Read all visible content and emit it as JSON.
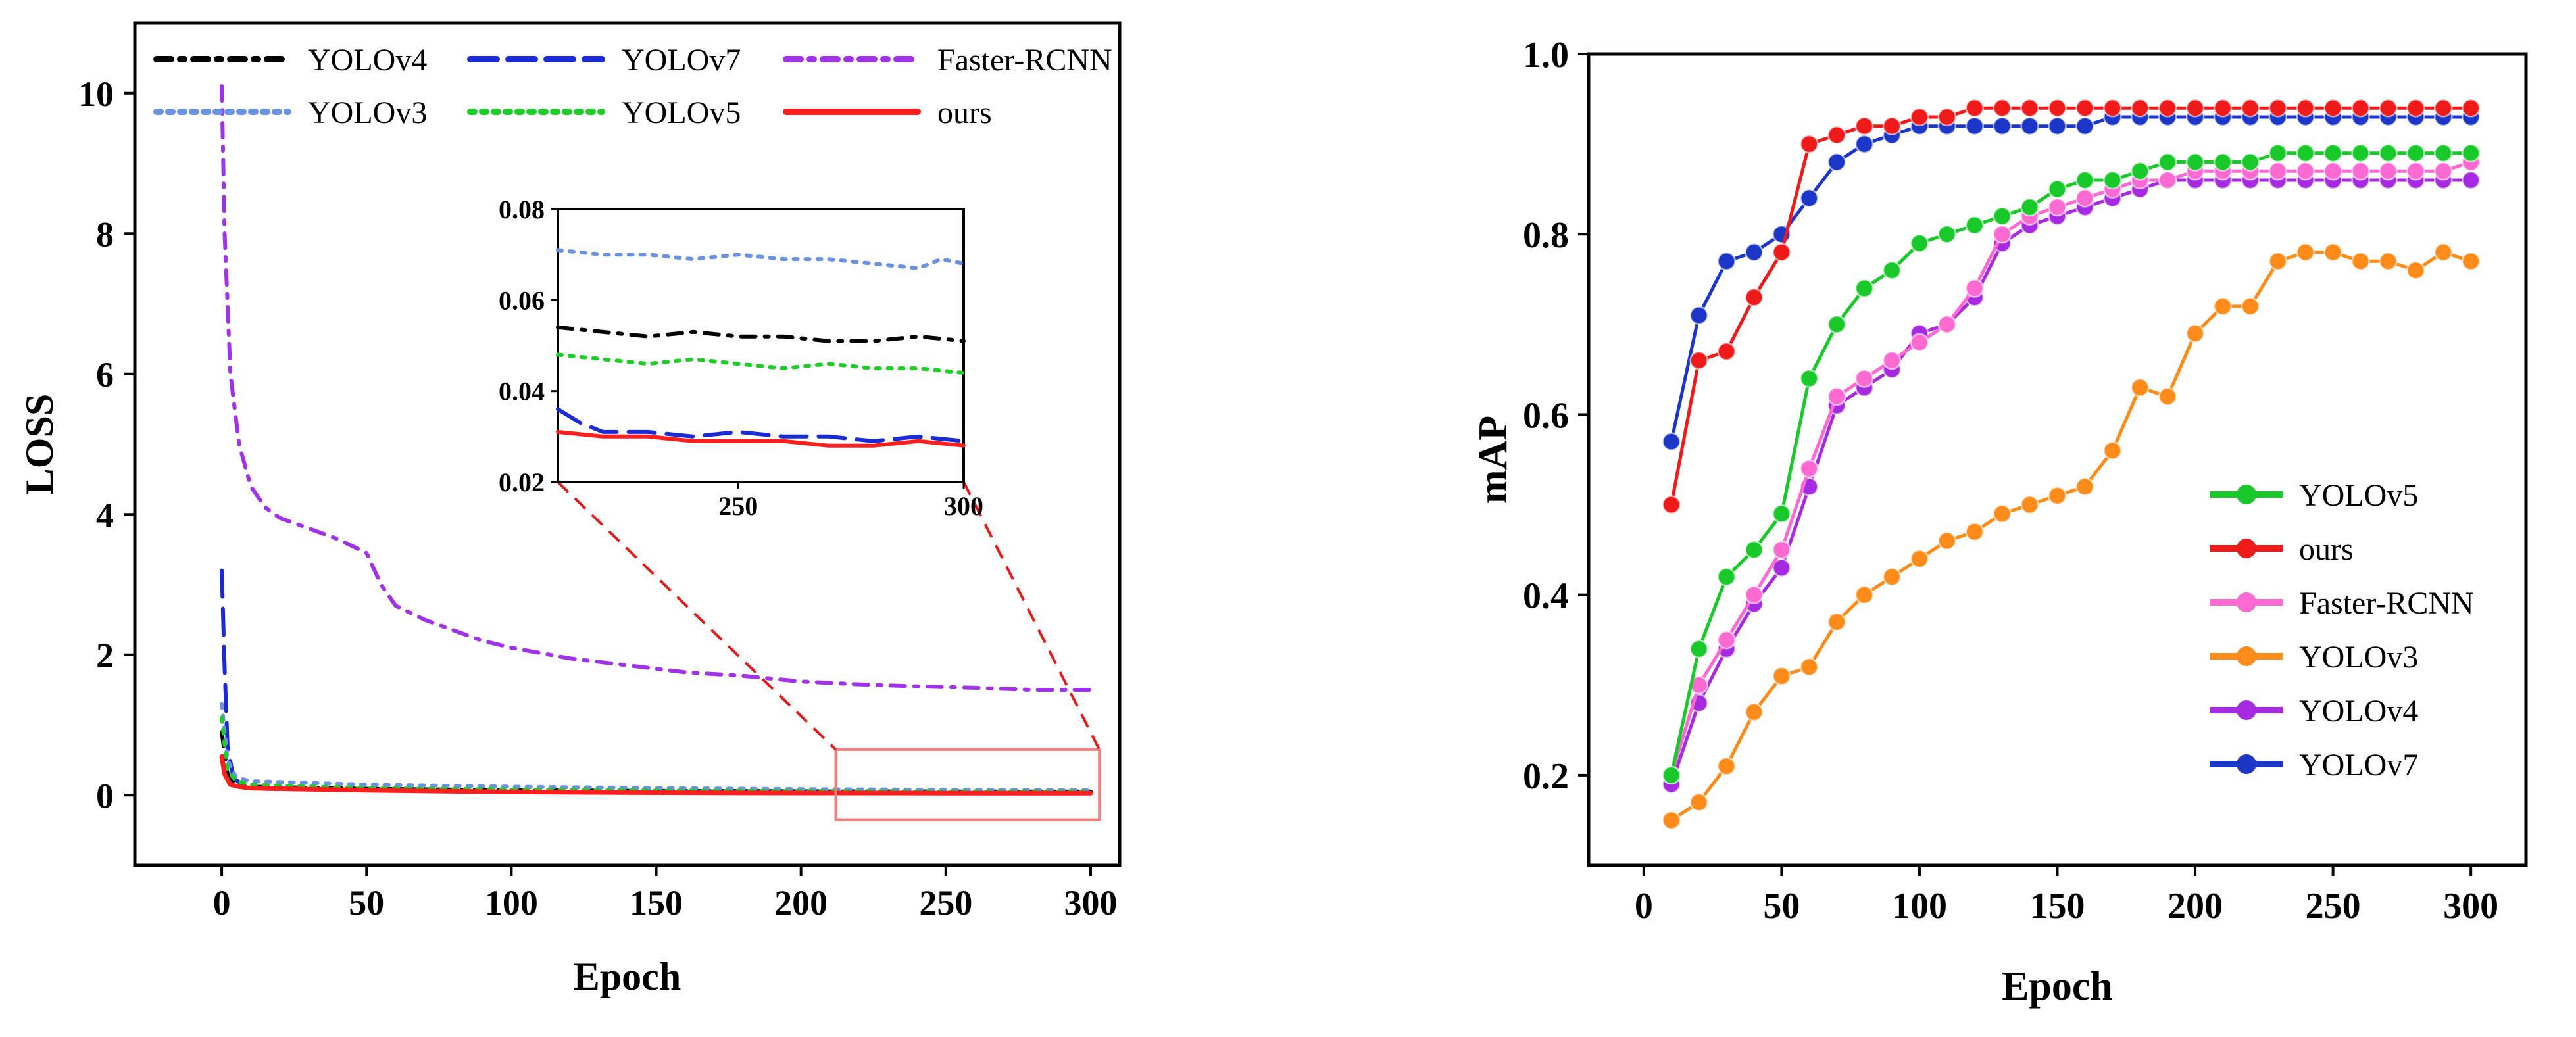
{
  "colors": {
    "YOLOv3": "#6a92e0",
    "YOLOv4": "#000000",
    "YOLOv5": "#1fcc2a",
    "YOLOv7": "#1a2bd6",
    "Faster-RCNN": "#a033e8",
    "ours": "#ff1f1f",
    "map_YOLOv5": "#19c92a",
    "map_ours": "#ef1a1a",
    "map_Faster-RCNN": "#ff69d2",
    "map_YOLOv3": "#ff8c1a",
    "map_YOLOv4": "#a52ae0",
    "map_YOLOv7": "#1c36c8",
    "zoom_box": "#f08080"
  },
  "chart_data": [
    {
      "type": "line",
      "xlabel": "Epoch",
      "ylabel": "LOSS",
      "xlim": [
        -30,
        310
      ],
      "ylim": [
        -1,
        11
      ],
      "xticks": [
        0,
        50,
        100,
        150,
        200,
        250,
        300
      ],
      "yticks": [
        0,
        2,
        4,
        6,
        8,
        10
      ],
      "legend": "top",
      "series": [
        {
          "name": "YOLOv4",
          "style": "dash-dot",
          "x": [
            0,
            2,
            5,
            10,
            50,
            100,
            150,
            200,
            250,
            300
          ],
          "y": [
            0.9,
            0.3,
            0.15,
            0.12,
            0.09,
            0.07,
            0.06,
            0.055,
            0.052,
            0.051
          ]
        },
        {
          "name": "YOLOv7",
          "style": "dashed",
          "x": [
            0,
            1,
            2,
            4,
            8,
            15,
            50,
            100,
            150,
            200,
            250,
            300
          ],
          "y": [
            3.2,
            1.8,
            0.7,
            0.25,
            0.12,
            0.09,
            0.07,
            0.05,
            0.04,
            0.035,
            0.031,
            0.03
          ]
        },
        {
          "name": "Faster-RCNN",
          "style": "dash-dot",
          "x": [
            0,
            1,
            3,
            6,
            10,
            15,
            20,
            30,
            40,
            50,
            55,
            60,
            70,
            80,
            90,
            100,
            120,
            140,
            160,
            180,
            200,
            220,
            240,
            260,
            280,
            300
          ],
          "y": [
            10.1,
            8.0,
            6.0,
            5.0,
            4.4,
            4.1,
            3.95,
            3.8,
            3.65,
            3.45,
            3.0,
            2.7,
            2.5,
            2.35,
            2.2,
            2.1,
            1.95,
            1.85,
            1.75,
            1.7,
            1.62,
            1.58,
            1.55,
            1.53,
            1.5,
            1.5
          ]
        },
        {
          "name": "YOLOv3",
          "style": "dotted",
          "x": [
            0,
            2,
            5,
            10,
            50,
            100,
            150,
            200,
            250,
            300
          ],
          "y": [
            1.3,
            0.5,
            0.25,
            0.2,
            0.15,
            0.12,
            0.1,
            0.085,
            0.075,
            0.07
          ]
        },
        {
          "name": "YOLOv5",
          "style": "dotted",
          "x": [
            0,
            2,
            5,
            10,
            50,
            100,
            150,
            200,
            250,
            300
          ],
          "y": [
            1.1,
            0.35,
            0.2,
            0.15,
            0.1,
            0.08,
            0.065,
            0.055,
            0.048,
            0.045
          ]
        },
        {
          "name": "ours",
          "style": "solid",
          "x": [
            0,
            1,
            3,
            6,
            10,
            50,
            100,
            150,
            200,
            250,
            300
          ],
          "y": [
            0.55,
            0.3,
            0.15,
            0.12,
            0.1,
            0.07,
            0.045,
            0.035,
            0.03,
            0.029,
            0.028
          ]
        }
      ],
      "inset": {
        "xlim": [
          210,
          300
        ],
        "ylim": [
          0.02,
          0.08
        ],
        "xticks": [
          250,
          300
        ],
        "yticks": [
          0.02,
          0.04,
          0.06,
          0.08
        ],
        "ytick_labels": [
          "0.02",
          "0.04",
          "0.06",
          "0.08"
        ],
        "series": [
          {
            "name": "YOLOv3",
            "style": "dotted",
            "x": [
              210,
              220,
              230,
              240,
              250,
              260,
              270,
              280,
              290,
              295,
              300
            ],
            "y": [
              0.071,
              0.07,
              0.07,
              0.069,
              0.07,
              0.069,
              0.069,
              0.068,
              0.067,
              0.069,
              0.068
            ]
          },
          {
            "name": "YOLOv4",
            "style": "dash-dot",
            "x": [
              210,
              220,
              230,
              240,
              250,
              260,
              270,
              280,
              290,
              300
            ],
            "y": [
              0.054,
              0.053,
              0.052,
              0.053,
              0.052,
              0.052,
              0.051,
              0.051,
              0.052,
              0.051
            ]
          },
          {
            "name": "YOLOv5",
            "style": "dotted",
            "x": [
              210,
              220,
              230,
              240,
              250,
              260,
              270,
              280,
              290,
              300
            ],
            "y": [
              0.048,
              0.047,
              0.046,
              0.047,
              0.046,
              0.045,
              0.046,
              0.045,
              0.045,
              0.044
            ]
          },
          {
            "name": "YOLOv7",
            "style": "dashed",
            "x": [
              210,
              215,
              220,
              230,
              240,
              250,
              260,
              270,
              280,
              290,
              300
            ],
            "y": [
              0.036,
              0.033,
              0.031,
              0.031,
              0.03,
              0.031,
              0.03,
              0.03,
              0.029,
              0.03,
              0.029
            ]
          },
          {
            "name": "ours",
            "style": "solid",
            "x": [
              210,
              220,
              230,
              240,
              250,
              260,
              270,
              280,
              290,
              300
            ],
            "y": [
              0.031,
              0.03,
              0.03,
              0.029,
              0.029,
              0.029,
              0.028,
              0.028,
              0.029,
              0.028
            ]
          }
        ]
      }
    },
    {
      "type": "line",
      "xlabel": "Epoch",
      "ylabel": "mAP",
      "xlim": [
        -20,
        320
      ],
      "ylim": [
        0.1,
        1.0
      ],
      "xticks": [
        0,
        50,
        100,
        150,
        200,
        250,
        300
      ],
      "yticks": [
        0.2,
        0.4,
        0.6,
        0.8,
        1.0
      ],
      "ytick_labels": [
        "0.2",
        "0.4",
        "0.6",
        "0.8",
        "1.0"
      ],
      "legend": "bottom-right",
      "x": [
        10,
        20,
        30,
        40,
        50,
        60,
        70,
        80,
        90,
        100,
        110,
        120,
        130,
        140,
        150,
        160,
        170,
        180,
        190,
        200,
        210,
        220,
        230,
        240,
        250,
        260,
        270,
        280,
        290,
        300
      ],
      "series": [
        {
          "name": "YOLOv5",
          "values": [
            0.2,
            0.34,
            0.42,
            0.45,
            0.49,
            0.64,
            0.7,
            0.74,
            0.76,
            0.79,
            0.8,
            0.81,
            0.82,
            0.83,
            0.85,
            0.86,
            0.86,
            0.87,
            0.88,
            0.88,
            0.88,
            0.88,
            0.89,
            0.89,
            0.89,
            0.89,
            0.89,
            0.89,
            0.89,
            0.89
          ]
        },
        {
          "name": "ours",
          "values": [
            0.5,
            0.66,
            0.67,
            0.73,
            0.78,
            0.9,
            0.91,
            0.92,
            0.92,
            0.93,
            0.93,
            0.94,
            0.94,
            0.94,
            0.94,
            0.94,
            0.94,
            0.94,
            0.94,
            0.94,
            0.94,
            0.94,
            0.94,
            0.94,
            0.94,
            0.94,
            0.94,
            0.94,
            0.94,
            0.94
          ]
        },
        {
          "name": "Faster-RCNN",
          "values": [
            0.2,
            0.3,
            0.35,
            0.4,
            0.45,
            0.54,
            0.62,
            0.64,
            0.66,
            0.68,
            0.7,
            0.74,
            0.8,
            0.82,
            0.83,
            0.84,
            0.85,
            0.86,
            0.86,
            0.87,
            0.87,
            0.87,
            0.87,
            0.87,
            0.87,
            0.87,
            0.87,
            0.87,
            0.87,
            0.88
          ]
        },
        {
          "name": "YOLOv3",
          "values": [
            0.15,
            0.17,
            0.21,
            0.27,
            0.31,
            0.32,
            0.37,
            0.4,
            0.42,
            0.44,
            0.46,
            0.47,
            0.49,
            0.5,
            0.51,
            0.52,
            0.56,
            0.63,
            0.62,
            0.69,
            0.72,
            0.72,
            0.77,
            0.78,
            0.78,
            0.77,
            0.77,
            0.76,
            0.78,
            0.77
          ]
        },
        {
          "name": "YOLOv4",
          "values": [
            0.19,
            0.28,
            0.34,
            0.39,
            0.43,
            0.52,
            0.61,
            0.63,
            0.65,
            0.69,
            0.7,
            0.73,
            0.79,
            0.81,
            0.82,
            0.83,
            0.84,
            0.85,
            0.86,
            0.86,
            0.86,
            0.86,
            0.86,
            0.86,
            0.86,
            0.86,
            0.86,
            0.86,
            0.86,
            0.86
          ]
        },
        {
          "name": "YOLOv7",
          "values": [
            0.57,
            0.71,
            0.77,
            0.78,
            0.8,
            0.84,
            0.88,
            0.9,
            0.91,
            0.92,
            0.92,
            0.92,
            0.92,
            0.92,
            0.92,
            0.92,
            0.93,
            0.93,
            0.93,
            0.93,
            0.93,
            0.93,
            0.93,
            0.93,
            0.93,
            0.93,
            0.93,
            0.93,
            0.93,
            0.93
          ]
        }
      ]
    }
  ]
}
